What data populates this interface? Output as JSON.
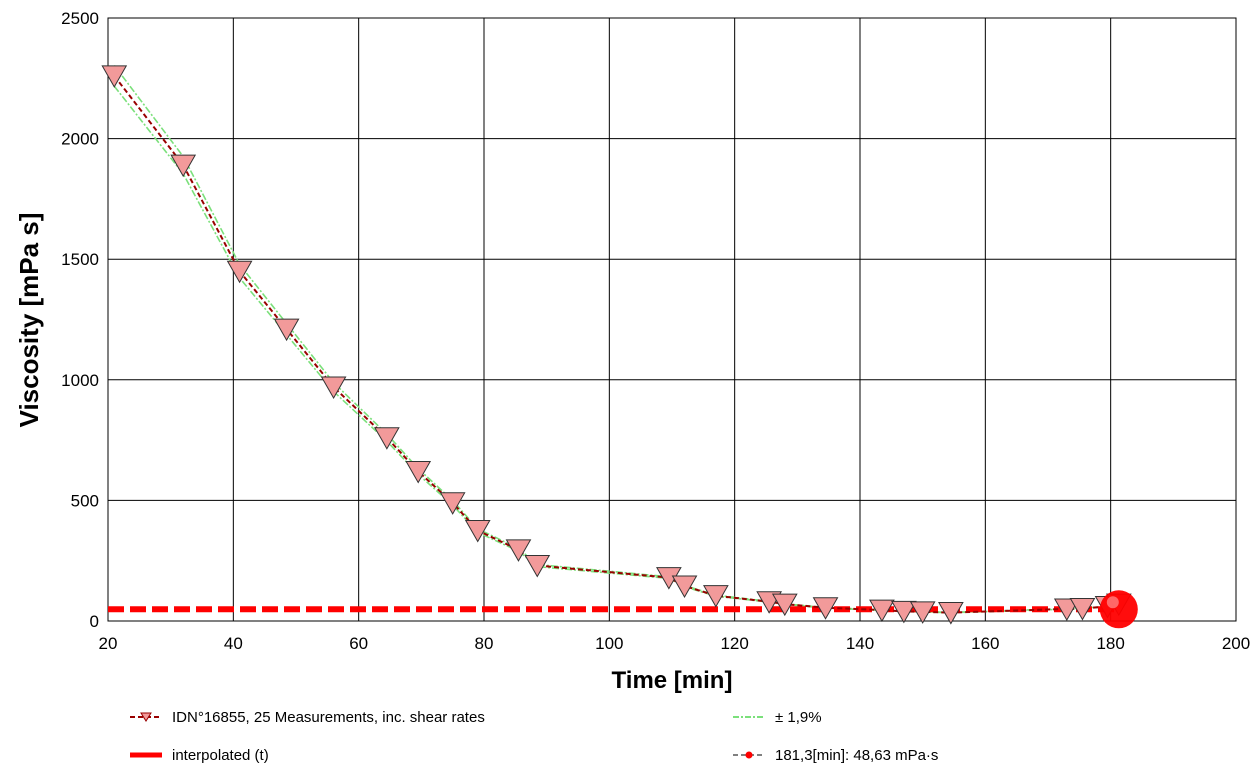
{
  "chart_data": {
    "type": "line",
    "xlabel": "Time [min]",
    "ylabel": "Viscosity [mPa s]",
    "xlim": [
      20,
      200
    ],
    "ylim": [
      0,
      2500
    ],
    "x_ticks": [
      "20",
      "40",
      "60",
      "80",
      "100",
      "120",
      "140",
      "160",
      "180",
      "200"
    ],
    "y_ticks": [
      "0",
      "500",
      "1000",
      "1500",
      "2000",
      "2500"
    ],
    "grid": true,
    "legend_position": "bottom",
    "colors": {
      "measurement_line": "#990000",
      "marker_fill": "#f29a9a",
      "band": "#7be07b",
      "interpolated": "#ff0000",
      "highlight_point": "#ff0000",
      "grid": "#000000"
    },
    "series": [
      {
        "name": "IDN°16855, 25 Measurements, inc. shear rates",
        "x": [
          21,
          32,
          41,
          48.5,
          56,
          64.5,
          69.5,
          75,
          79,
          85.5,
          88.5,
          109.5,
          112,
          117,
          125.5,
          128,
          134.5,
          143.5,
          147,
          150,
          154.5,
          173,
          175.5,
          179.5,
          181.3
        ],
        "y": [
          2260,
          1890,
          1450,
          1210,
          970,
          760,
          620,
          490,
          375,
          295,
          230,
          180,
          145,
          105,
          80,
          70,
          55,
          45,
          40,
          38,
          35,
          50,
          52,
          60,
          70
        ]
      },
      {
        "name": "± 1,9%",
        "offset_percent": 1.9
      },
      {
        "name": "interpolated (t)",
        "y_constant": 48.63
      },
      {
        "name": "181,3[min]: 48,63 mPa·s",
        "x": [
          181.3
        ],
        "y": [
          48.63
        ]
      }
    ],
    "legend": [
      {
        "key": "measurement",
        "label": "IDN°16855, 25 Measurements, inc. shear rates"
      },
      {
        "key": "band",
        "label": "± 1,9%"
      },
      {
        "key": "interpolated",
        "label": "interpolated (t)"
      },
      {
        "key": "point",
        "label": "181,3[min]: 48,63 mPa·s"
      }
    ]
  }
}
